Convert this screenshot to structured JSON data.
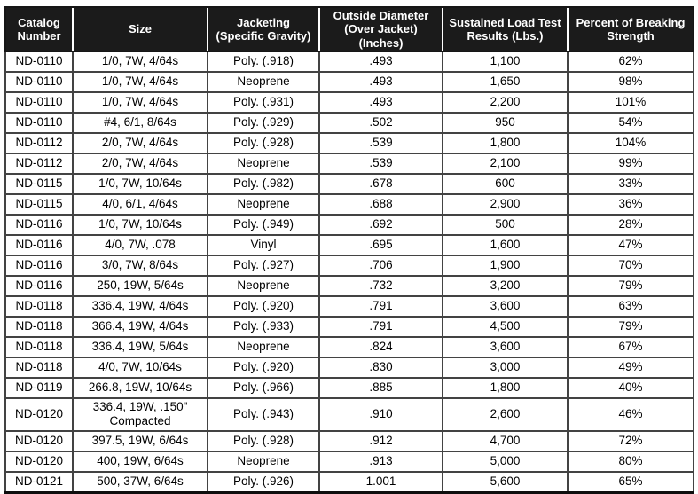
{
  "colors": {
    "header_bg": "#1b1b1b",
    "header_text": "#ffffff",
    "body_text": "#000000",
    "grid_line": "#434343",
    "outer_border": "#161616"
  },
  "table": {
    "column_keys": [
      "catalog-number",
      "size",
      "jacketing",
      "outside-diameter",
      "sustained-load-test",
      "percent-breaking-strength"
    ],
    "columns": [
      {
        "label": "Catalog\nNumber"
      },
      {
        "label": "Size"
      },
      {
        "label": "Jacketing\n(Specific Gravity)"
      },
      {
        "label": "Outside Diameter\n(Over Jacket)\n(Inches)"
      },
      {
        "label": "Sustained Load Test\nResults (Lbs.)"
      },
      {
        "label": "Percent of Breaking\nStrength"
      }
    ],
    "rows": [
      [
        "ND-0110",
        "1/0, 7W, 4/64s",
        "Poly. (.918)",
        ".493",
        "1,100",
        "62%"
      ],
      [
        "ND-0110",
        "1/0, 7W, 4/64s",
        "Neoprene",
        ".493",
        "1,650",
        "98%"
      ],
      [
        "ND-0110",
        "1/0, 7W, 4/64s",
        "Poly. (.931)",
        ".493",
        "2,200",
        "101%"
      ],
      [
        "ND-0110",
        "#4, 6/1, 8/64s",
        "Poly. (.929)",
        ".502",
        "950",
        "54%"
      ],
      [
        "ND-0112",
        "2/0, 7W, 4/64s",
        "Poly. (.928)",
        ".539",
        "1,800",
        "104%"
      ],
      [
        "ND-0112",
        "2/0, 7W, 4/64s",
        "Neoprene",
        ".539",
        "2,100",
        "99%"
      ],
      [
        "ND-0115",
        "1/0, 7W, 10/64s",
        "Poly. (.982)",
        ".678",
        "600",
        "33%"
      ],
      [
        "ND-0115",
        "4/0, 6/1, 4/64s",
        "Neoprene",
        ".688",
        "2,900",
        "36%"
      ],
      [
        "ND-0116",
        "1/0, 7W, 10/64s",
        "Poly. (.949)",
        ".692",
        "500",
        "28%"
      ],
      [
        "ND-0116",
        "4/0, 7W, .078",
        "Vinyl",
        ".695",
        "1,600",
        "47%"
      ],
      [
        "ND-0116",
        "3/0, 7W, 8/64s",
        "Poly. (.927)",
        ".706",
        "1,900",
        "70%"
      ],
      [
        "ND-0116",
        "250, 19W, 5/64s",
        "Neoprene",
        ".732",
        "3,200",
        "79%"
      ],
      [
        "ND-0118",
        "336.4, 19W, 4/64s",
        "Poly. (.920)",
        ".791",
        "3,600",
        "63%"
      ],
      [
        "ND-0118",
        "366.4, 19W, 4/64s",
        "Poly. (.933)",
        ".791",
        "4,500",
        "79%"
      ],
      [
        "ND-0118",
        "336.4, 19W, 5/64s",
        "Neoprene",
        ".824",
        "3,600",
        "67%"
      ],
      [
        "ND-0118",
        "4/0, 7W, 10/64s",
        "Poly. (.920)",
        ".830",
        "3,000",
        "49%"
      ],
      [
        "ND-0119",
        "266.8, 19W, 10/64s",
        "Poly. (.966)",
        ".885",
        "1,800",
        "40%"
      ],
      [
        "ND-0120",
        "336.4, 19W, .150\"\nCompacted",
        "Poly. (.943)",
        ".910",
        "2,600",
        "46%"
      ],
      [
        "ND-0120",
        "397.5, 19W, 6/64s",
        "Poly. (.928)",
        ".912",
        "4,700",
        "72%"
      ],
      [
        "ND-0120",
        "400, 19W, 6/64s",
        "Neoprene",
        ".913",
        "5,000",
        "80%"
      ],
      [
        "ND-0121",
        "500, 37W, 6/64s",
        "Poly. (.926)",
        "1.001",
        "5,600",
        "65%"
      ]
    ]
  }
}
